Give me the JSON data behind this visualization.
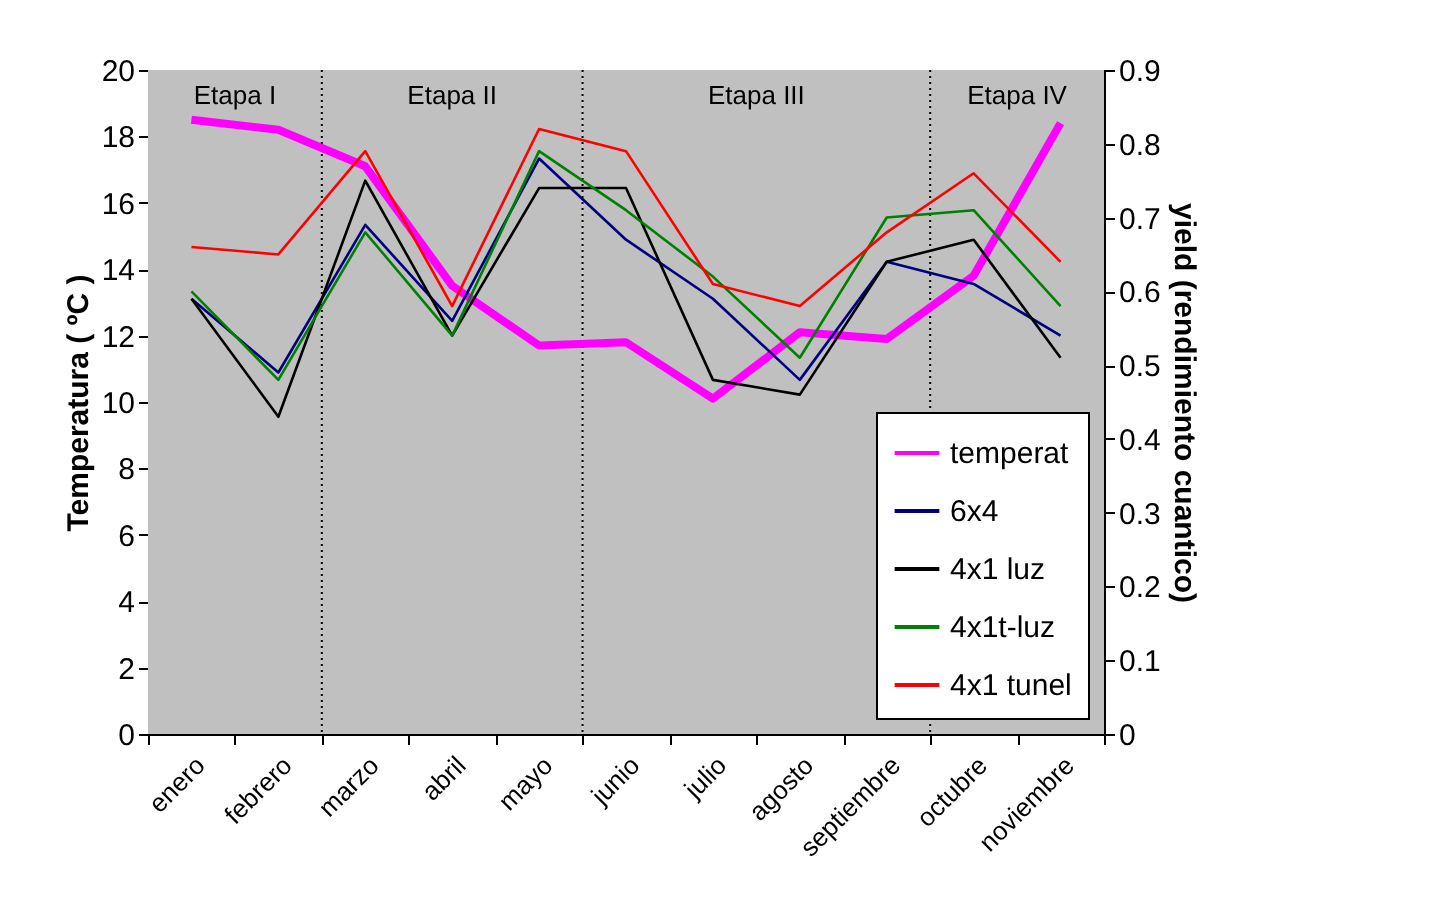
{
  "chart_data": {
    "type": "line",
    "ylabel": "Temperatura ( ºC )",
    "y2label": "yield (rendimiento cuantico)",
    "categories": [
      "enero",
      "febrero",
      "marzo",
      "abril",
      "mayo",
      "junio",
      "julio",
      "agosto",
      "septiembre",
      "octubre",
      "noviembre"
    ],
    "series": [
      {
        "name": "temperat",
        "color": "#ff00ff",
        "values": [
          18.5,
          18.2,
          17.1,
          13.5,
          11.7,
          11.8,
          10.1,
          12.1,
          11.9,
          13.8,
          18.4
        ]
      },
      {
        "name": "6x4",
        "color": "#000080",
        "axis": "y2",
        "values": [
          0.59,
          0.49,
          0.69,
          0.56,
          0.78,
          0.67,
          0.59,
          0.48,
          0.64,
          0.61,
          0.54
        ]
      },
      {
        "name": "4x1 luz",
        "color": "#000000",
        "axis": "y2",
        "values": [
          0.59,
          0.43,
          0.75,
          0.54,
          0.74,
          0.74,
          0.48,
          0.46,
          0.64,
          0.67,
          0.51
        ]
      },
      {
        "name": "4x1t-luz",
        "color": "#008000",
        "axis": "y2",
        "values": [
          0.6,
          0.48,
          0.68,
          0.54,
          0.79,
          0.71,
          0.62,
          0.51,
          0.7,
          0.71,
          0.58
        ]
      },
      {
        "name": "4x1 tunel",
        "color": "#ff0000",
        "axis": "y2",
        "values": [
          0.66,
          0.65,
          0.79,
          0.58,
          0.82,
          0.79,
          0.61,
          0.58,
          0.68,
          0.76,
          0.64
        ]
      }
    ],
    "ylim": [
      0,
      20
    ],
    "yticks": [
      0,
      2,
      4,
      6,
      8,
      10,
      12,
      14,
      16,
      18,
      20
    ],
    "y2lim": [
      0,
      0.9
    ],
    "y2ticks": [
      {
        "value": 0,
        "label": "0"
      },
      0.1,
      0.2,
      0.3,
      0.4,
      0.5,
      0.6,
      0.7,
      0.8,
      0.9
    ],
    "bands": [
      {
        "axis": "x",
        "from": "enero",
        "to": "febrero",
        "label": "Etapa I",
        "color": "#c0c0c0"
      },
      {
        "axis": "x",
        "from": "marzo",
        "to": "mayo",
        "label": "Etapa II",
        "color": "#c0c0c0"
      },
      {
        "axis": "x",
        "from": "junio",
        "to": "septiembre",
        "label": "Etapa III",
        "color": "#c0c0c0"
      },
      {
        "axis": "x",
        "from": "octubre",
        "to": "noviembre",
        "label": "Etapa IV",
        "color": "#c0c0c0"
      }
    ],
    "grid": false,
    "legend": "bottom right"
  }
}
